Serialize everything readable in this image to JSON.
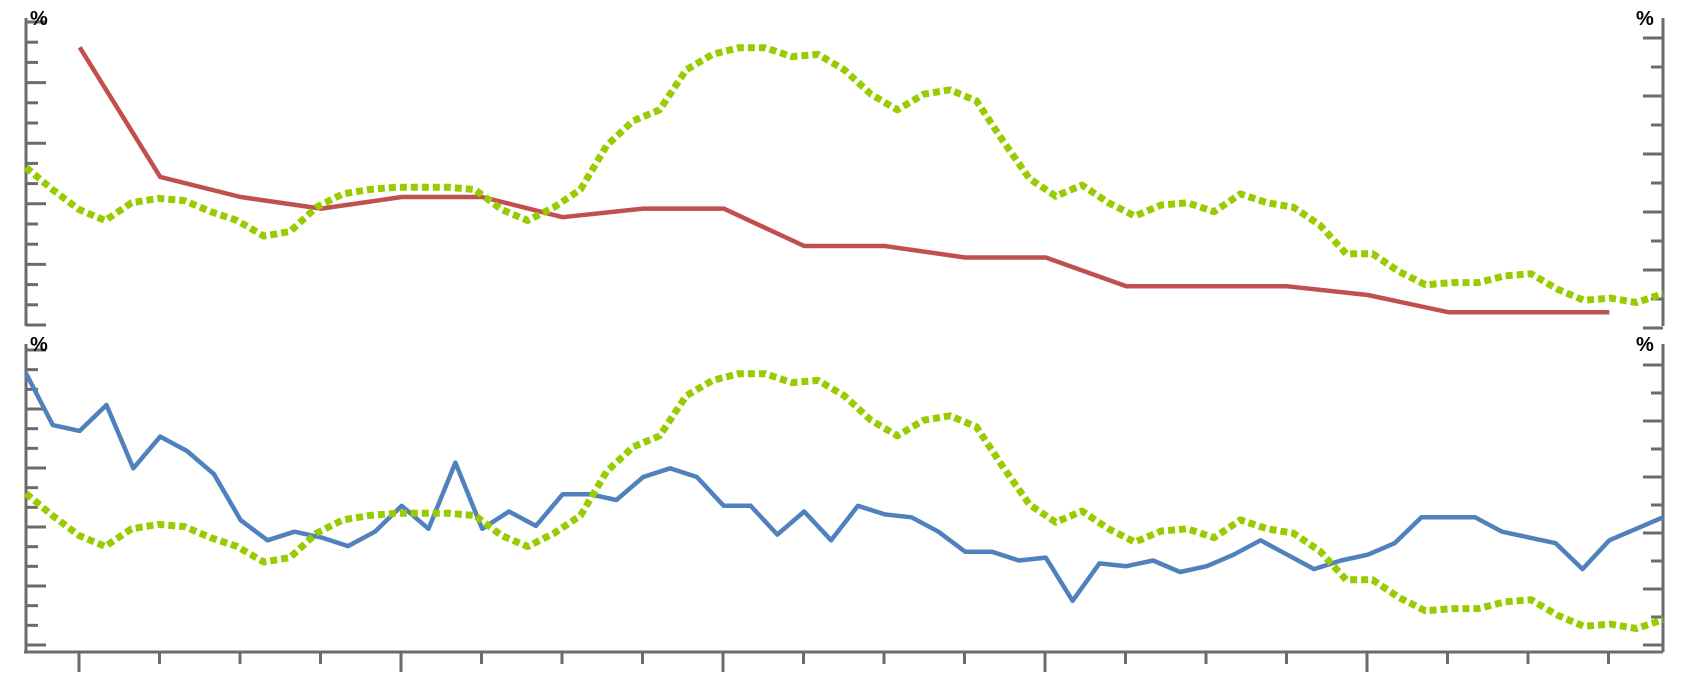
{
  "chart_data": [
    {
      "type": "line",
      "left_axis": {
        "unit_label": "%"
      },
      "right_axis": {
        "unit_label": "%"
      },
      "x": {
        "count": 60
      },
      "series": [
        {
          "axis": "left",
          "color": "#c0504d",
          "style": "solid",
          "x": [
            2,
            5,
            8,
            11,
            14,
            17,
            20,
            23,
            26,
            29,
            32,
            35,
            38,
            41,
            44,
            47,
            50,
            53,
            56,
            59
          ],
          "values": [
            9.4,
            4.9,
            4.2,
            3.8,
            4.2,
            4.2,
            3.5,
            3.8,
            3.8,
            2.5,
            2.5,
            2.1,
            2.1,
            1.1,
            1.1,
            1.1,
            0.8,
            0.2,
            0.2,
            0.2
          ]
        },
        {
          "axis": "right",
          "color": "#99cc00",
          "style": "dotted",
          "values": [
            26.8,
            25.8,
            24.9,
            24.4,
            25.2,
            25.4,
            25.3,
            24.8,
            24.4,
            23.7,
            23.9,
            25.0,
            25.6,
            25.8,
            25.9,
            25.9,
            25.9,
            25.8,
            24.9,
            24.4,
            25.0,
            25.8,
            27.8,
            28.9,
            29.4,
            31.2,
            31.9,
            32.2,
            32.2,
            31.8,
            31.9,
            31.2,
            30.1,
            29.4,
            30.1,
            30.3,
            29.8,
            28.0,
            26.3,
            25.5,
            26.0,
            25.2,
            24.6,
            25.1,
            25.2,
            24.8,
            25.6,
            25.2,
            25.0,
            24.2,
            22.9,
            22.9,
            22.1,
            21.5,
            21.6,
            21.6,
            21.9,
            22.0,
            21.3,
            20.8,
            20.9,
            20.7,
            21.1
          ]
        }
      ]
    },
    {
      "type": "line",
      "left_axis": {
        "unit_label": "%"
      },
      "right_axis": {
        "unit_label": "%"
      },
      "x": {
        "count": 60
      },
      "series": [
        {
          "axis": "left",
          "color": "#4f81bd",
          "style": "solid",
          "values": [
            9.4,
            7.6,
            7.4,
            8.3,
            6.1,
            7.2,
            6.7,
            5.9,
            4.3,
            3.6,
            3.9,
            3.7,
            3.4,
            3.9,
            4.8,
            4.0,
            6.3,
            4.0,
            4.6,
            4.1,
            5.2,
            5.2,
            5.0,
            5.8,
            6.1,
            5.8,
            4.8,
            4.8,
            3.8,
            4.6,
            3.6,
            4.8,
            4.5,
            4.4,
            3.9,
            3.2,
            3.2,
            2.9,
            3.0,
            1.5,
            2.8,
            2.7,
            2.9,
            2.5,
            2.7,
            3.1,
            3.6,
            3.1,
            2.6,
            2.9,
            3.1,
            3.5,
            4.4,
            4.4,
            4.4,
            3.9,
            3.7,
            3.5,
            2.6,
            3.6,
            4.0,
            4.4
          ]
        },
        {
          "axis": "right",
          "color": "#99cc00",
          "style": "dotted",
          "values": [
            26.8,
            25.8,
            24.9,
            24.4,
            25.2,
            25.4,
            25.3,
            24.8,
            24.4,
            23.7,
            23.9,
            25.0,
            25.6,
            25.8,
            25.9,
            25.9,
            25.9,
            25.8,
            24.9,
            24.4,
            25.0,
            25.8,
            27.8,
            28.9,
            29.4,
            31.2,
            31.9,
            32.2,
            32.2,
            31.8,
            31.9,
            31.2,
            30.1,
            29.4,
            30.1,
            30.3,
            29.8,
            28.0,
            26.3,
            25.5,
            26.0,
            25.2,
            24.6,
            25.1,
            25.2,
            24.8,
            25.6,
            25.2,
            25.0,
            24.2,
            22.9,
            22.9,
            22.1,
            21.5,
            21.6,
            21.6,
            21.9,
            22.0,
            21.3,
            20.8,
            20.9,
            20.7,
            21.1
          ]
        }
      ]
    }
  ]
}
